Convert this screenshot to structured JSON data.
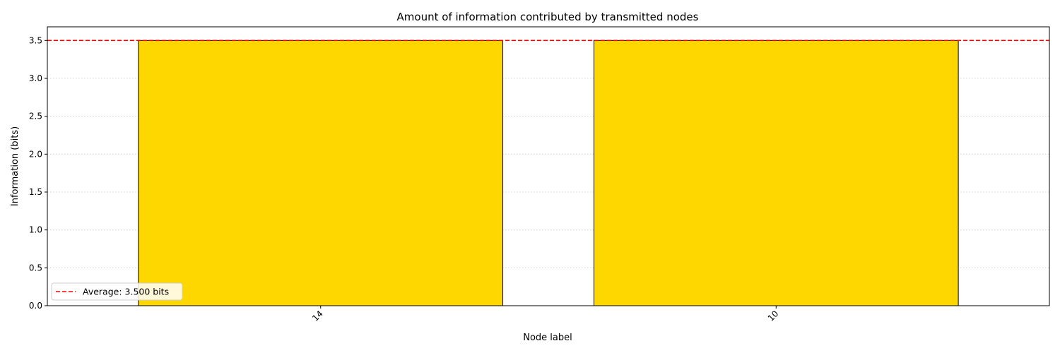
{
  "chart_data": {
    "type": "bar",
    "title": "Amount of information contributed by transmitted nodes",
    "xlabel": "Node label",
    "ylabel": "Information (bits)",
    "categories": [
      "14",
      "10"
    ],
    "values": [
      3.5,
      3.5
    ],
    "ylim": [
      0,
      3.68
    ],
    "yticks": [
      "0.0",
      "0.5",
      "1.0",
      "1.5",
      "2.0",
      "2.5",
      "3.0",
      "3.5"
    ],
    "grid": "horizontal dotted",
    "bar_color": "#FFD700",
    "bar_edge_color": "#000000",
    "reference_line": {
      "value": 3.5,
      "color": "#FF0000",
      "style": "dashed",
      "label": "Average: 3.500 bits"
    },
    "legend_position": "lower-left"
  }
}
